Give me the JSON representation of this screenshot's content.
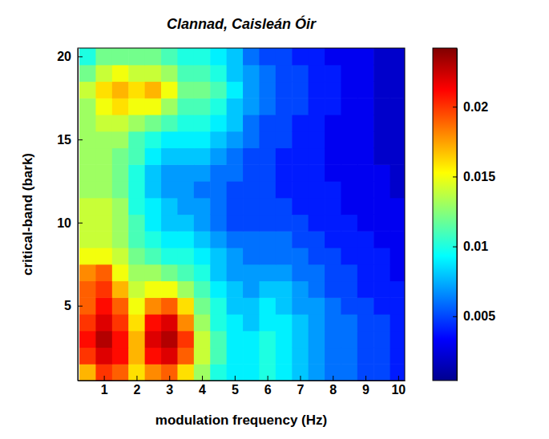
{
  "chart_data": {
    "type": "heatmap",
    "title": "Clannad, Caisleán Óir",
    "x_label": "modulation frequency (Hz)",
    "y_label": "critical-band (bark)",
    "xlim": [
      0.2,
      10.2
    ],
    "xticks": [
      1,
      2,
      3,
      4,
      5,
      6,
      7,
      8,
      9,
      10
    ],
    "ylim": [
      0.5,
      20.5
    ],
    "yticks": [
      5,
      10,
      15,
      20
    ],
    "zlim": [
      0.0004,
      0.0242
    ],
    "zticks": [
      0.005,
      0.01,
      0.015,
      0.02
    ],
    "x": [
      0.5,
      1,
      1.5,
      2,
      2.5,
      3,
      3.5,
      4,
      4.5,
      5,
      5.5,
      6,
      6.5,
      7,
      7.5,
      8,
      8.5,
      9,
      9.5,
      10
    ],
    "y": [
      1,
      2,
      3,
      4,
      5,
      6,
      7,
      8,
      9,
      10,
      11,
      12,
      13,
      14,
      15,
      16,
      17,
      18,
      19,
      20
    ],
    "z": [
      [
        0.017,
        0.02,
        0.019,
        0.016,
        0.018,
        0.019,
        0.016,
        0.013,
        0.01,
        0.009,
        0.009,
        0.01,
        0.009,
        0.008,
        0.007,
        0.006,
        0.006,
        0.005,
        0.005,
        0.004
      ],
      [
        0.02,
        0.022,
        0.021,
        0.017,
        0.021,
        0.022,
        0.019,
        0.014,
        0.011,
        0.009,
        0.009,
        0.01,
        0.009,
        0.008,
        0.007,
        0.006,
        0.006,
        0.005,
        0.005,
        0.004
      ],
      [
        0.021,
        0.023,
        0.021,
        0.017,
        0.022,
        0.023,
        0.02,
        0.014,
        0.011,
        0.009,
        0.009,
        0.01,
        0.009,
        0.008,
        0.007,
        0.006,
        0.006,
        0.005,
        0.005,
        0.004
      ],
      [
        0.02,
        0.022,
        0.02,
        0.016,
        0.021,
        0.022,
        0.018,
        0.013,
        0.01,
        0.009,
        0.008,
        0.009,
        0.009,
        0.008,
        0.007,
        0.006,
        0.006,
        0.005,
        0.005,
        0.004
      ],
      [
        0.019,
        0.021,
        0.019,
        0.015,
        0.018,
        0.019,
        0.016,
        0.012,
        0.01,
        0.008,
        0.008,
        0.009,
        0.008,
        0.007,
        0.007,
        0.006,
        0.005,
        0.005,
        0.004,
        0.004
      ],
      [
        0.019,
        0.02,
        0.017,
        0.014,
        0.015,
        0.015,
        0.013,
        0.011,
        0.009,
        0.008,
        0.007,
        0.008,
        0.008,
        0.007,
        0.006,
        0.005,
        0.005,
        0.004,
        0.004,
        0.004
      ],
      [
        0.018,
        0.019,
        0.015,
        0.013,
        0.013,
        0.012,
        0.011,
        0.01,
        0.008,
        0.007,
        0.007,
        0.007,
        0.007,
        0.006,
        0.006,
        0.005,
        0.005,
        0.004,
        0.004,
        0.003
      ],
      [
        0.015,
        0.015,
        0.014,
        0.012,
        0.011,
        0.01,
        0.01,
        0.009,
        0.008,
        0.007,
        0.006,
        0.006,
        0.006,
        0.006,
        0.005,
        0.005,
        0.004,
        0.004,
        0.004,
        0.003
      ],
      [
        0.014,
        0.014,
        0.013,
        0.011,
        0.01,
        0.009,
        0.009,
        0.008,
        0.007,
        0.006,
        0.006,
        0.006,
        0.006,
        0.005,
        0.005,
        0.004,
        0.004,
        0.004,
        0.003,
        0.003
      ],
      [
        0.014,
        0.014,
        0.013,
        0.011,
        0.009,
        0.008,
        0.008,
        0.007,
        0.006,
        0.005,
        0.005,
        0.005,
        0.005,
        0.005,
        0.004,
        0.004,
        0.004,
        0.003,
        0.003,
        0.003
      ],
      [
        0.014,
        0.014,
        0.013,
        0.01,
        0.009,
        0.008,
        0.007,
        0.007,
        0.006,
        0.005,
        0.005,
        0.005,
        0.005,
        0.004,
        0.004,
        0.004,
        0.003,
        0.003,
        0.003,
        0.003
      ],
      [
        0.013,
        0.013,
        0.012,
        0.01,
        0.008,
        0.007,
        0.007,
        0.006,
        0.006,
        0.005,
        0.005,
        0.005,
        0.004,
        0.004,
        0.004,
        0.004,
        0.003,
        0.003,
        0.003,
        0.002
      ],
      [
        0.013,
        0.013,
        0.012,
        0.01,
        0.008,
        0.007,
        0.007,
        0.007,
        0.006,
        0.006,
        0.005,
        0.005,
        0.004,
        0.004,
        0.004,
        0.003,
        0.003,
        0.003,
        0.003,
        0.002
      ],
      [
        0.013,
        0.013,
        0.012,
        0.011,
        0.009,
        0.008,
        0.008,
        0.008,
        0.007,
        0.006,
        0.005,
        0.005,
        0.004,
        0.004,
        0.004,
        0.003,
        0.003,
        0.003,
        0.002,
        0.002
      ],
      [
        0.013,
        0.013,
        0.013,
        0.011,
        0.01,
        0.009,
        0.009,
        0.009,
        0.008,
        0.007,
        0.006,
        0.005,
        0.005,
        0.004,
        0.004,
        0.003,
        0.003,
        0.003,
        0.002,
        0.002
      ],
      [
        0.013,
        0.014,
        0.014,
        0.013,
        0.012,
        0.011,
        0.01,
        0.01,
        0.009,
        0.008,
        0.006,
        0.005,
        0.005,
        0.004,
        0.004,
        0.003,
        0.003,
        0.003,
        0.002,
        0.002
      ],
      [
        0.013,
        0.015,
        0.016,
        0.015,
        0.015,
        0.013,
        0.011,
        0.011,
        0.01,
        0.008,
        0.007,
        0.006,
        0.005,
        0.005,
        0.004,
        0.004,
        0.003,
        0.003,
        0.002,
        0.002
      ],
      [
        0.014,
        0.016,
        0.017,
        0.016,
        0.017,
        0.015,
        0.012,
        0.012,
        0.011,
        0.009,
        0.007,
        0.006,
        0.005,
        0.005,
        0.004,
        0.004,
        0.003,
        0.003,
        0.002,
        0.002
      ],
      [
        0.012,
        0.014,
        0.015,
        0.014,
        0.014,
        0.013,
        0.011,
        0.011,
        0.01,
        0.008,
        0.007,
        0.006,
        0.005,
        0.005,
        0.004,
        0.004,
        0.003,
        0.003,
        0.002,
        0.002
      ],
      [
        0.01,
        0.012,
        0.012,
        0.012,
        0.012,
        0.011,
        0.01,
        0.01,
        0.009,
        0.008,
        0.006,
        0.005,
        0.005,
        0.004,
        0.004,
        0.003,
        0.003,
        0.003,
        0.002,
        0.002
      ]
    ]
  }
}
